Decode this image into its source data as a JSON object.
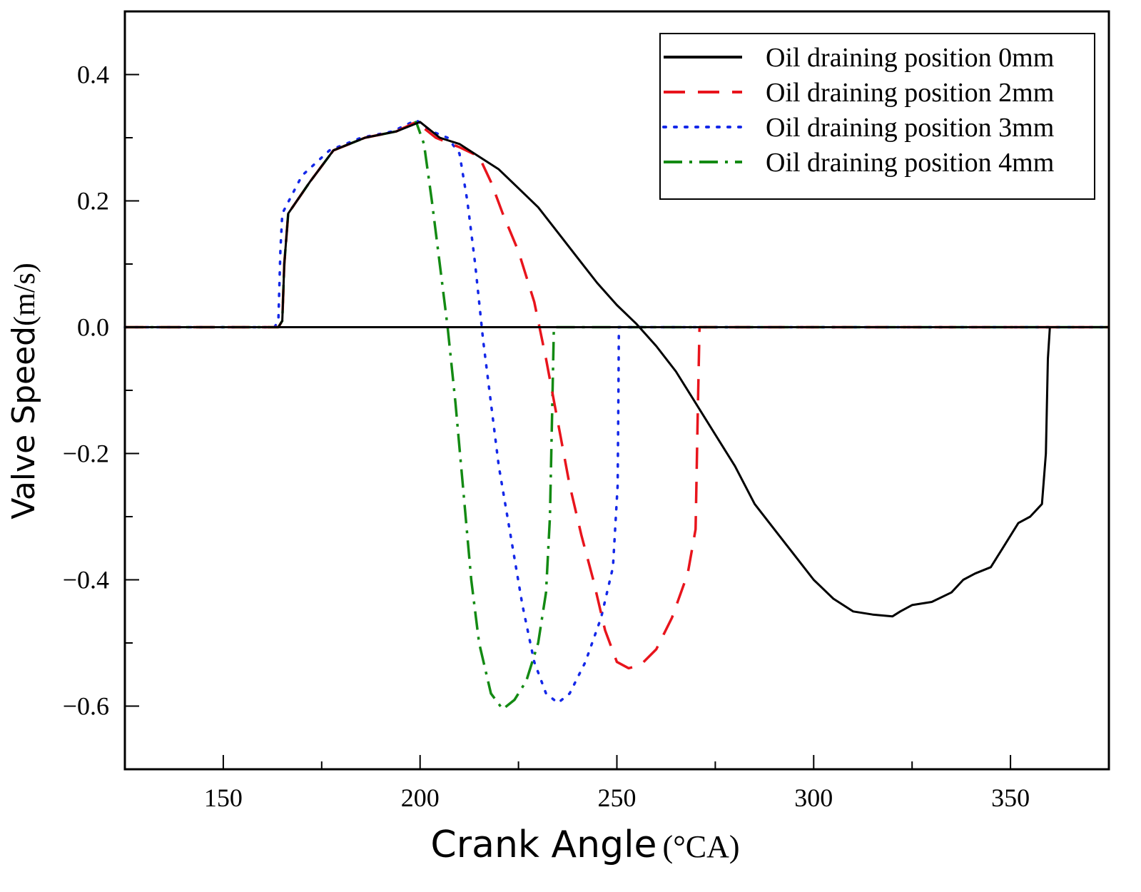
{
  "chart_data": {
    "type": "line",
    "title": "",
    "xlabel": {
      "main": "Crank Angle",
      "unit": "(°CA)"
    },
    "ylabel": {
      "main": "Valve Speed",
      "unit": "(m/s)"
    },
    "xlim": [
      125,
      375
    ],
    "ylim": [
      -0.7,
      0.5
    ],
    "xticks": [
      150,
      200,
      250,
      300,
      350
    ],
    "xtick_labels": [
      "150",
      "200",
      "250",
      "300",
      "350"
    ],
    "yticks": [
      0.4,
      0.2,
      0.0,
      -0.2,
      -0.4,
      -0.6
    ],
    "ytick_labels": [
      "0.4",
      "0.2",
      "0.0",
      "−0.2",
      "−0.4",
      "−0.6"
    ],
    "legend_position": "top-right",
    "grid": false,
    "series": [
      {
        "name": "Oil draining position 0mm",
        "color": "#000000",
        "style": "solid",
        "points": [
          [
            125,
            0
          ],
          [
            164,
            0
          ],
          [
            165,
            0.01
          ],
          [
            165.5,
            0.1
          ],
          [
            166.5,
            0.18
          ],
          [
            172,
            0.23
          ],
          [
            178,
            0.28
          ],
          [
            186,
            0.3
          ],
          [
            194,
            0.31
          ],
          [
            200,
            0.325
          ],
          [
            205,
            0.3
          ],
          [
            210,
            0.29
          ],
          [
            215,
            0.27
          ],
          [
            220,
            0.25
          ],
          [
            225,
            0.22
          ],
          [
            230,
            0.19
          ],
          [
            235,
            0.15
          ],
          [
            240,
            0.11
          ],
          [
            245,
            0.07
          ],
          [
            250,
            0.035
          ],
          [
            255,
            0.005
          ],
          [
            260,
            -0.03
          ],
          [
            265,
            -0.07
          ],
          [
            270,
            -0.12
          ],
          [
            275,
            -0.17
          ],
          [
            280,
            -0.22
          ],
          [
            285,
            -0.28
          ],
          [
            290,
            -0.32
          ],
          [
            295,
            -0.36
          ],
          [
            300,
            -0.4
          ],
          [
            305,
            -0.43
          ],
          [
            310,
            -0.45
          ],
          [
            315,
            -0.455
          ],
          [
            320,
            -0.458
          ],
          [
            322,
            -0.45
          ],
          [
            325,
            -0.44
          ],
          [
            330,
            -0.435
          ],
          [
            335,
            -0.42
          ],
          [
            338,
            -0.4
          ],
          [
            341,
            -0.39
          ],
          [
            345,
            -0.38
          ],
          [
            348,
            -0.35
          ],
          [
            352,
            -0.31
          ],
          [
            355,
            -0.3
          ],
          [
            358,
            -0.28
          ],
          [
            359,
            -0.2
          ],
          [
            359.5,
            -0.05
          ],
          [
            360,
            0
          ],
          [
            375,
            0
          ]
        ]
      },
      {
        "name": "Oil draining position 2mm",
        "color": "#e8141c",
        "style": "dashed",
        "points": [
          [
            125,
            0
          ],
          [
            164,
            0
          ],
          [
            165,
            0.01
          ],
          [
            165.5,
            0.1
          ],
          [
            166.5,
            0.18
          ],
          [
            172,
            0.23
          ],
          [
            178,
            0.28
          ],
          [
            186,
            0.3
          ],
          [
            194,
            0.31
          ],
          [
            199,
            0.325
          ],
          [
            204,
            0.3
          ],
          [
            210,
            0.285
          ],
          [
            215,
            0.27
          ],
          [
            218,
            0.23
          ],
          [
            221,
            0.18
          ],
          [
            225,
            0.12
          ],
          [
            229,
            0.04
          ],
          [
            232,
            -0.05
          ],
          [
            235,
            -0.15
          ],
          [
            238,
            -0.25
          ],
          [
            241,
            -0.33
          ],
          [
            244,
            -0.4
          ],
          [
            247,
            -0.48
          ],
          [
            250,
            -0.53
          ],
          [
            253,
            -0.54
          ],
          [
            256,
            -0.535
          ],
          [
            260,
            -0.51
          ],
          [
            264,
            -0.46
          ],
          [
            268,
            -0.39
          ],
          [
            270,
            -0.32
          ],
          [
            270.5,
            -0.15
          ],
          [
            271,
            0
          ],
          [
            375,
            0
          ]
        ]
      },
      {
        "name": "Oil draining position 3mm",
        "color": "#1428e8",
        "style": "dotted",
        "points": [
          [
            125,
            0
          ],
          [
            163,
            0
          ],
          [
            164,
            0.01
          ],
          [
            164.5,
            0.12
          ],
          [
            165,
            0.18
          ],
          [
            170,
            0.24
          ],
          [
            177,
            0.28
          ],
          [
            185,
            0.3
          ],
          [
            193,
            0.31
          ],
          [
            199,
            0.328
          ],
          [
            203,
            0.31
          ],
          [
            207,
            0.3
          ],
          [
            210,
            0.275
          ],
          [
            212,
            0.2
          ],
          [
            214,
            0.1
          ],
          [
            216,
            -0.02
          ],
          [
            218,
            -0.12
          ],
          [
            220,
            -0.22
          ],
          [
            223,
            -0.33
          ],
          [
            226,
            -0.44
          ],
          [
            229,
            -0.53
          ],
          [
            232,
            -0.58
          ],
          [
            235,
            -0.595
          ],
          [
            238,
            -0.58
          ],
          [
            242,
            -0.53
          ],
          [
            246,
            -0.46
          ],
          [
            249,
            -0.38
          ],
          [
            250.2,
            -0.25
          ],
          [
            250.4,
            -0.1
          ],
          [
            250.5,
            0
          ],
          [
            375,
            0
          ]
        ]
      },
      {
        "name": "Oil draining position 4mm",
        "color": "#138a13",
        "style": "dashdot",
        "points": [
          [
            125,
            0
          ],
          [
            164,
            0
          ],
          [
            165,
            0.01
          ],
          [
            165.5,
            0.1
          ],
          [
            166.5,
            0.18
          ],
          [
            172,
            0.23
          ],
          [
            178,
            0.28
          ],
          [
            186,
            0.3
          ],
          [
            194,
            0.31
          ],
          [
            199,
            0.325
          ],
          [
            201,
            0.29
          ],
          [
            203,
            0.2
          ],
          [
            205,
            0.1
          ],
          [
            207,
            0.0
          ],
          [
            209,
            -0.12
          ],
          [
            211,
            -0.26
          ],
          [
            213,
            -0.4
          ],
          [
            215,
            -0.5
          ],
          [
            218,
            -0.58
          ],
          [
            221,
            -0.605
          ],
          [
            224,
            -0.59
          ],
          [
            227,
            -0.56
          ],
          [
            230,
            -0.5
          ],
          [
            232,
            -0.42
          ],
          [
            233,
            -0.3
          ],
          [
            233.5,
            -0.15
          ],
          [
            234,
            0
          ],
          [
            375,
            0
          ]
        ]
      }
    ]
  }
}
